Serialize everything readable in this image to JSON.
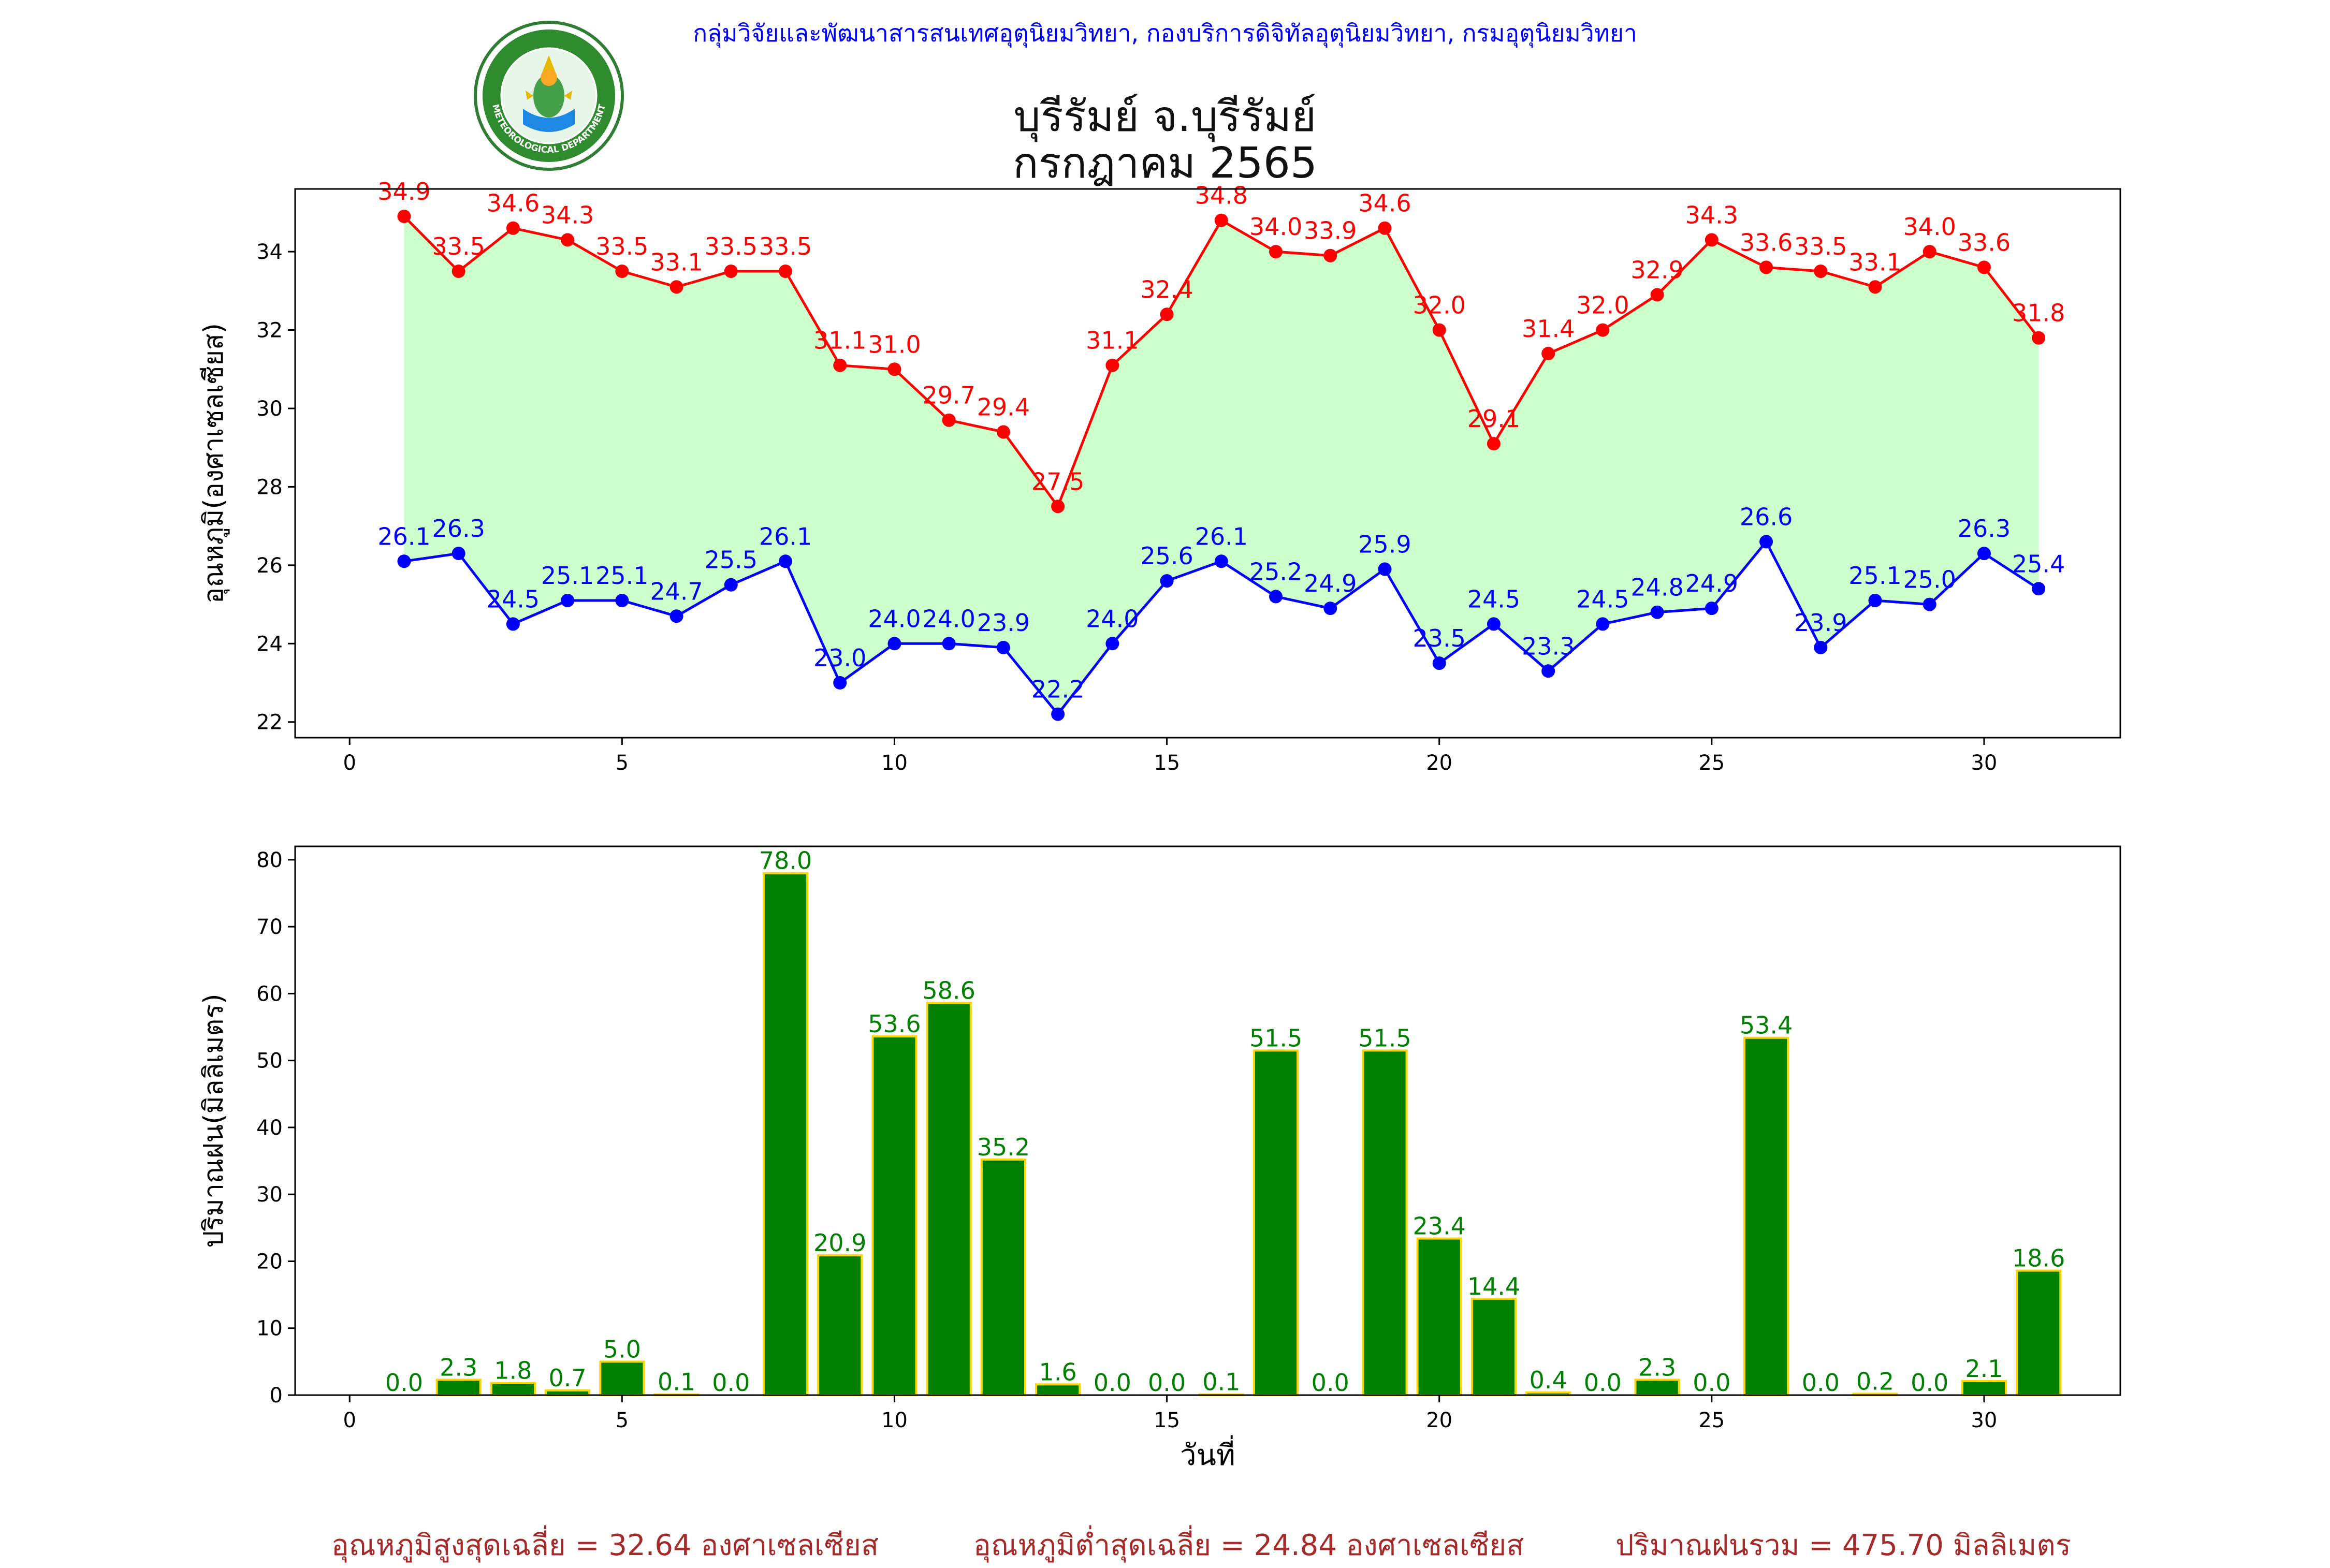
{
  "header": {
    "org": "กลุ่มวิจัยและพัฒนาสารสนเทศอุตุนิยมวิทยา, กองบริการดิจิทัลอุตุนิยมวิทยา, กรมอุตุนิยมวิทยา",
    "title_station": "บุรีรัมย์ จ.บุรีรัมย์",
    "title_period": "กรกฎาคม 2565",
    "logo_text": "METEOROLOGICAL DEPARTMENT"
  },
  "footer": {
    "avg_max": "อุณหภูมิสูงสุดเฉลี่ย = 32.64 องศาเซลเซียส",
    "avg_min": "อุณหภูมิต่ำสุดเฉลี่ย = 24.84 องศาเซลเซียส",
    "total_rain": "ปริมาณฝนรวม = 475.70 มิลลิเมตร"
  },
  "colors": {
    "max": "#ff0000",
    "min": "#0000ff",
    "fill": "#ccffcc",
    "bar": "#008000",
    "bar_edge": "#ffd700",
    "footer": "#a52a2a",
    "org": "#0000ff"
  },
  "chart_data": [
    {
      "type": "line",
      "ylabel": "อุณหภูมิ(องศาเซลเซียส)",
      "xlim": [
        -1,
        32.5
      ],
      "ylim": [
        21.6,
        35.6
      ],
      "xticks": [
        0,
        5,
        10,
        15,
        20,
        25,
        30
      ],
      "yticks": [
        22,
        24,
        26,
        28,
        30,
        32,
        34
      ],
      "x": [
        1,
        2,
        3,
        4,
        5,
        6,
        7,
        8,
        9,
        10,
        11,
        12,
        13,
        14,
        15,
        16,
        17,
        18,
        19,
        20,
        21,
        22,
        23,
        24,
        25,
        26,
        27,
        28,
        29,
        30,
        31
      ],
      "series": [
        {
          "key": "max",
          "values": [
            34.9,
            33.5,
            34.6,
            34.3,
            33.5,
            33.1,
            33.5,
            33.5,
            31.1,
            31.0,
            29.7,
            29.4,
            27.5,
            31.1,
            32.4,
            34.8,
            34.0,
            33.9,
            34.6,
            32.0,
            29.1,
            31.4,
            32.0,
            32.9,
            34.3,
            33.6,
            33.5,
            33.1,
            34.0,
            33.6,
            31.8
          ]
        },
        {
          "key": "min",
          "values": [
            26.1,
            26.3,
            24.5,
            25.1,
            25.1,
            24.7,
            25.5,
            26.1,
            23.0,
            24.0,
            24.0,
            23.9,
            22.2,
            24.0,
            25.6,
            26.1,
            25.2,
            24.9,
            25.9,
            23.5,
            24.5,
            23.3,
            24.5,
            24.8,
            24.9,
            26.6,
            23.9,
            25.1,
            25.0,
            26.3,
            25.4
          ]
        }
      ],
      "fill_between": true,
      "grid": false
    },
    {
      "type": "bar",
      "xlabel": "วันที่",
      "ylabel": "ปริมาณฝน(มิลลิเมตร)",
      "xlim": [
        -1,
        32.5
      ],
      "ylim": [
        0,
        82
      ],
      "xticks": [
        0,
        5,
        10,
        15,
        20,
        25,
        30
      ],
      "yticks": [
        0,
        10,
        20,
        30,
        40,
        50,
        60,
        70,
        80
      ],
      "x": [
        1,
        2,
        3,
        4,
        5,
        6,
        7,
        8,
        9,
        10,
        11,
        12,
        13,
        14,
        15,
        16,
        17,
        18,
        19,
        20,
        21,
        22,
        23,
        24,
        25,
        26,
        27,
        28,
        29,
        30,
        31
      ],
      "values": [
        0.0,
        2.3,
        1.8,
        0.7,
        5.0,
        0.1,
        0.0,
        78.0,
        20.9,
        53.6,
        58.6,
        35.2,
        1.6,
        0.0,
        0.0,
        0.1,
        51.5,
        0.0,
        51.5,
        23.4,
        14.4,
        0.4,
        0.0,
        2.3,
        0.0,
        53.4,
        0.0,
        0.2,
        0.0,
        2.1,
        18.6
      ],
      "grid": false
    }
  ]
}
